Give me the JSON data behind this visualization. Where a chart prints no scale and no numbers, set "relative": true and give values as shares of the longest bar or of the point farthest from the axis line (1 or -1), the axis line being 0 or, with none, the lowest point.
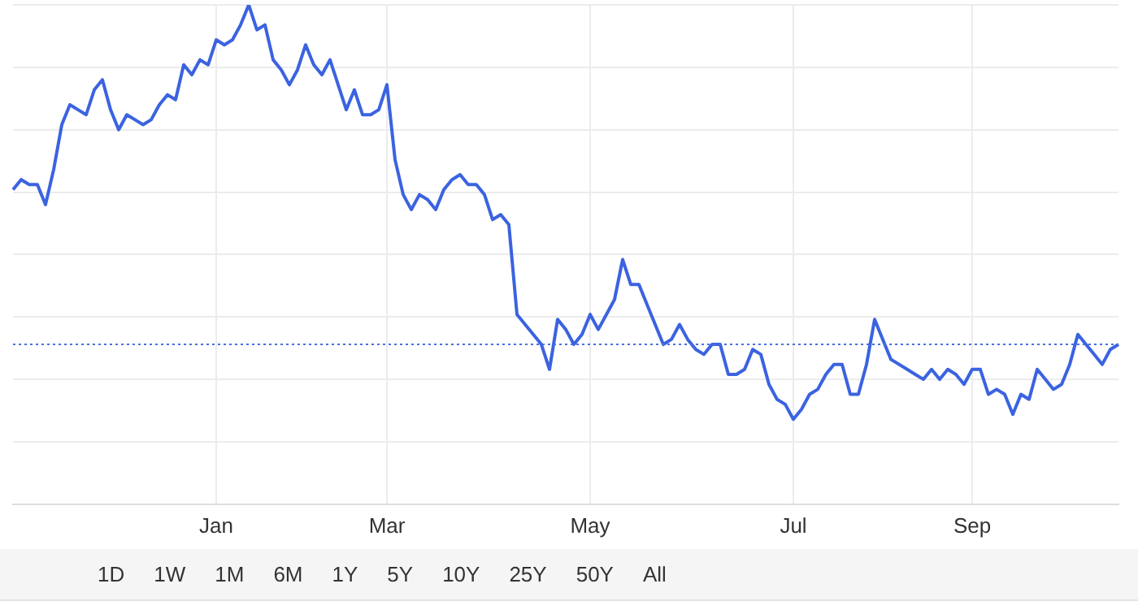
{
  "chart_data": {
    "type": "line",
    "relative": true,
    "grid": true,
    "legend": false,
    "marker": "none",
    "line_style": "solid",
    "tick_labels": "x",
    "categories": [
      null,
      null,
      null,
      null,
      null,
      null,
      null,
      null,
      null,
      null,
      null,
      null,
      null,
      null,
      null,
      null,
      null,
      null,
      null,
      null,
      null,
      null,
      null,
      null,
      null,
      "Jan",
      null,
      null,
      null,
      null,
      null,
      null,
      null,
      null,
      null,
      null,
      null,
      null,
      null,
      null,
      null,
      null,
      null,
      null,
      null,
      null,
      "Mar",
      null,
      null,
      null,
      null,
      null,
      null,
      null,
      null,
      null,
      null,
      null,
      null,
      null,
      null,
      null,
      null,
      null,
      null,
      null,
      null,
      null,
      null,
      null,
      null,
      "May",
      null,
      null,
      null,
      null,
      null,
      null,
      null,
      null,
      null,
      null,
      null,
      null,
      null,
      null,
      null,
      null,
      null,
      null,
      null,
      null,
      null,
      null,
      null,
      null,
      "Jul",
      null,
      null,
      null,
      null,
      null,
      null,
      null,
      null,
      null,
      null,
      null,
      null,
      null,
      null,
      null,
      null,
      null,
      null,
      null,
      null,
      null,
      "Sep",
      null,
      null,
      null,
      null,
      null,
      null,
      null,
      null,
      null,
      null,
      null,
      null,
      null,
      null,
      null,
      null,
      null,
      null
    ],
    "series": [
      {
        "color": "#3b63e0",
        "values": [
          0.63,
          0.65,
          0.64,
          0.64,
          0.6,
          0.67,
          0.76,
          0.8,
          0.79,
          0.78,
          0.83,
          0.85,
          0.79,
          0.75,
          0.78,
          0.77,
          0.76,
          0.77,
          0.8,
          0.82,
          0.81,
          0.88,
          0.86,
          0.89,
          0.88,
          0.93,
          0.92,
          0.93,
          0.96,
          1,
          0.95,
          0.96,
          0.89,
          0.87,
          0.84,
          0.87,
          0.92,
          0.88,
          0.86,
          0.89,
          0.84,
          0.79,
          0.83,
          0.78,
          0.78,
          0.79,
          0.84,
          0.69,
          0.62,
          0.59,
          0.62,
          0.61,
          0.59,
          0.63,
          0.65,
          0.66,
          0.64,
          0.64,
          0.62,
          0.57,
          0.58,
          0.56,
          0.38,
          0.36,
          0.34,
          0.32,
          0.27,
          0.37,
          0.35,
          0.32,
          0.34,
          0.38,
          0.35,
          0.38,
          0.41,
          0.49,
          0.44,
          0.44,
          0.4,
          0.36,
          0.32,
          0.33,
          0.36,
          0.33,
          0.31,
          0.3,
          0.32,
          0.32,
          0.26,
          0.26,
          0.27,
          0.31,
          0.3,
          0.24,
          0.21,
          0.2,
          0.17,
          0.19,
          0.22,
          0.23,
          0.26,
          0.28,
          0.28,
          0.22,
          0.22,
          0.28,
          0.37,
          0.33,
          0.29,
          0.28,
          0.27,
          0.26,
          0.25,
          0.27,
          0.25,
          0.27,
          0.26,
          0.24,
          0.27,
          0.27,
          0.22,
          0.23,
          0.22,
          0.18,
          0.22,
          0.21,
          0.27,
          0.25,
          0.23,
          0.24,
          0.28,
          0.34,
          0.32,
          0.3,
          0.28,
          0.31,
          0.32
        ]
      }
    ],
    "ref_lines": [
      {
        "axis": "y",
        "value": 0.32,
        "color": "#4a6fe0",
        "line_style": "dotted"
      }
    ],
    "annotations": [
      "1D",
      "1W",
      "1M",
      "6M",
      "1Y",
      "5Y",
      "10Y",
      "25Y",
      "50Y",
      "All"
    ]
  }
}
